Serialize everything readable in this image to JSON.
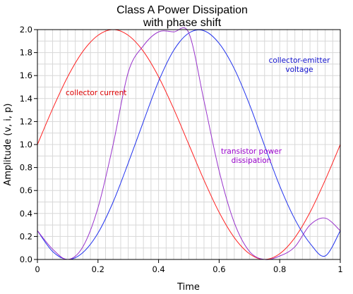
{
  "chart_data": {
    "type": "line",
    "title": [
      "Class A Power Dissipation",
      "with phase shift"
    ],
    "xlabel": "Time",
    "ylabel": "Amplitude (v, i, p)",
    "xlim": [
      0,
      1
    ],
    "ylim": [
      0,
      2
    ],
    "grid": true,
    "x_ticks": [
      0,
      0.2,
      0.4,
      0.6,
      0.8,
      1
    ],
    "x_tick_labels": [
      "0",
      "0.2",
      "0.4",
      "0.6",
      "0.8",
      "1"
    ],
    "y_ticks": [
      0,
      0.2,
      0.4,
      0.6,
      0.8,
      1.0,
      1.2,
      1.4,
      1.6,
      1.8,
      2.0
    ],
    "y_tick_labels": [
      "0.0",
      "0.2",
      "0.4",
      "0.6",
      "0.8",
      "1.0",
      "1.2",
      "1.4",
      "1.6",
      "1.8",
      "2.0"
    ],
    "x": [
      0,
      0.05,
      0.1,
      0.15,
      0.2,
      0.25,
      0.3,
      0.35,
      0.4,
      0.45,
      0.5,
      0.55,
      0.6,
      0.65,
      0.7,
      0.75,
      0.8,
      0.85,
      0.9,
      0.95,
      1
    ],
    "series": [
      {
        "id": "collector-current",
        "color": "#ff2222",
        "values": [
          1.0,
          1.31,
          1.59,
          1.81,
          1.95,
          2.0,
          1.95,
          1.81,
          1.59,
          1.31,
          1.0,
          0.69,
          0.41,
          0.19,
          0.05,
          0.0,
          0.05,
          0.19,
          0.41,
          0.69,
          1.0
        ]
      },
      {
        "id": "collector-emitter-voltage",
        "color": "#2233ee",
        "values": [
          0.25,
          0.07,
          0.0,
          0.06,
          0.23,
          0.5,
          0.84,
          1.2,
          1.55,
          1.82,
          1.97,
          1.99,
          1.88,
          1.66,
          1.35,
          0.99,
          0.64,
          0.35,
          0.14,
          0.03,
          0.25
        ]
      },
      {
        "id": "transistor-power-dissipation",
        "color": "#9933cc",
        "values": [
          0.25,
          0.09,
          0.0,
          0.11,
          0.45,
          1.0,
          1.63,
          1.86,
          1.98,
          1.98,
          1.97,
          1.38,
          0.77,
          0.32,
          0.07,
          0.0,
          0.03,
          0.11,
          0.3,
          0.36,
          0.25
        ]
      }
    ],
    "annotations": [
      {
        "text": "collector current",
        "color": "#dd0000",
        "series": "collector-current"
      },
      {
        "text": "collector-emitter",
        "color": "#1111cc",
        "series": "collector-emitter-voltage"
      },
      {
        "text": "voltage",
        "color": "#1111cc",
        "series": "collector-emitter-voltage"
      },
      {
        "text": "transistor power",
        "color": "#9900cc",
        "series": "transistor-power-dissipation"
      },
      {
        "text": "dissipation",
        "color": "#9900cc",
        "series": "transistor-power-dissipation"
      }
    ]
  }
}
